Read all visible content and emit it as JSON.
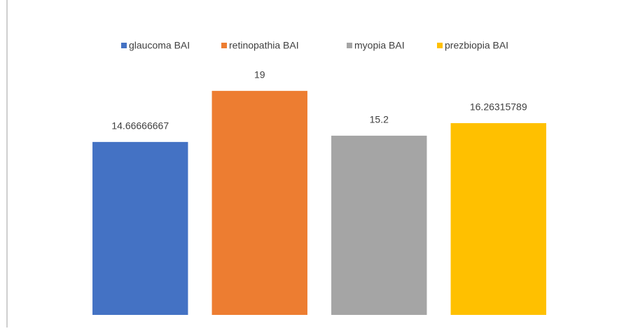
{
  "chart_data": {
    "type": "bar",
    "categories": [
      null
    ],
    "series": [
      {
        "name": "glaucoma BAI",
        "color": "#4472c4",
        "values": [
          14.66666667
        ]
      },
      {
        "name": "retinopathia BAI",
        "color": "#ed7d31",
        "values": [
          19
        ]
      },
      {
        "name": "myopia BAI",
        "color": "#a5a5a5",
        "values": [
          15.2
        ]
      },
      {
        "name": "prezbiopia BAI",
        "color": "#ffc000",
        "values": [
          16.26315789
        ]
      }
    ],
    "ylim": [
      0,
      20
    ],
    "legend": "top"
  }
}
